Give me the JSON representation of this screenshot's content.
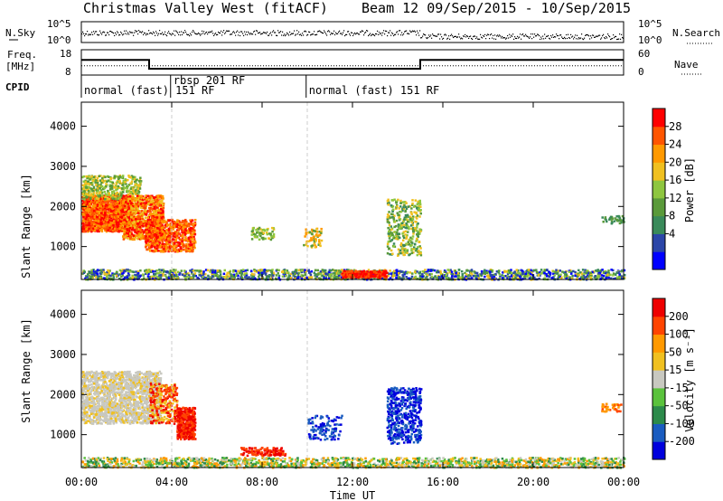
{
  "chart_data": [
    {
      "type": "scatter",
      "panel": "summary",
      "title": "Christmas Valley West (fitACF)",
      "title_right": "Beam 12  09/Sep/2015 - 10/Sep/2015",
      "left_labels": {
        "nsky": "N.Sky",
        "freq_line1": "Freq.",
        "freq_line2": "[MHz]",
        "cpid": "CPID"
      },
      "right_labels": {
        "nsearch": "N.Search",
        "nave": "Nave"
      },
      "nsky_ticks": [
        "10^5",
        "10^0"
      ],
      "nsky_right_ticks": [
        "10^5",
        "10^0"
      ],
      "freq_ticks": [
        "18",
        "8"
      ],
      "nave_ticks": [
        "60",
        "0"
      ],
      "freq_steps": [
        {
          "t": 0,
          "freq": 14
        },
        {
          "t": 3,
          "freq": 10.5
        },
        {
          "t": 15,
          "freq": 14
        },
        {
          "t": 24,
          "freq": 14
        }
      ],
      "nave_level": 22,
      "cpid_segments": [
        {
          "start": 0,
          "label": "normal (fast) 151 RF"
        },
        {
          "start": 3.95,
          "label": "rbsp 201 RF"
        },
        {
          "start": 9.95,
          "label": "normal (fast) 151 RF"
        }
      ]
    },
    {
      "type": "heatmap",
      "panel": "power",
      "ylabel": "Slant Range [km]",
      "colorbar_label": "Power [dB]",
      "colorbar_ticks": [
        "28",
        "24",
        "20",
        "16",
        "12",
        "8",
        "4"
      ],
      "yticks": [
        "4000",
        "3000",
        "2000",
        "1000"
      ],
      "ylim": [
        180,
        4600
      ],
      "xlim": [
        0,
        24
      ]
    },
    {
      "type": "heatmap",
      "panel": "velocity",
      "ylabel": "Slant Range [km]",
      "colorbar_label": "Velocity [m s⁻¹]",
      "colorbar_ticks": [
        "200",
        "100",
        "50",
        "15",
        "-15",
        "-50",
        "-100",
        "-200"
      ],
      "yticks": [
        "4000",
        "3000",
        "2000",
        "1000"
      ],
      "ylim": [
        180,
        4600
      ],
      "xlim": [
        0,
        24
      ],
      "xticks": [
        "00:00",
        "04:00",
        "08:00",
        "12:00",
        "16:00",
        "20:00",
        "00:00"
      ],
      "xlabel": "Time UT"
    }
  ],
  "colors": {
    "power_scale": [
      "#0000ff",
      "#2b46a8",
      "#3a8a5a",
      "#5a9a3a",
      "#8ec63f",
      "#f0c020",
      "#ff9900",
      "#ff5500",
      "#ff0000"
    ],
    "velocity_scale": [
      "#0000dd",
      "#1a5cc0",
      "#2c8a4a",
      "#5ac23c",
      "#c8c8c0",
      "#f0c020",
      "#ff9900",
      "#ff4400",
      "#ee0000"
    ]
  }
}
